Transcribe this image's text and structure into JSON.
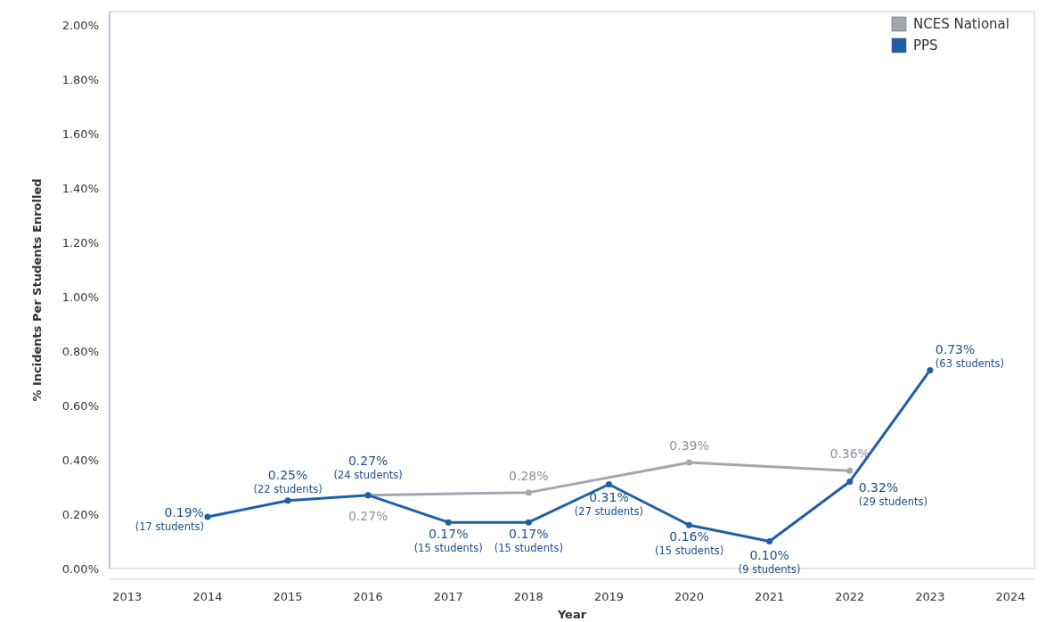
{
  "chart_data": {
    "type": "line",
    "xlabel": "Year",
    "ylabel": "% Incidents Per Students Enrolled",
    "xlim": [
      2012.78,
      2024.3
    ],
    "xticks": [
      2013,
      2014,
      2015,
      2016,
      2017,
      2018,
      2019,
      2020,
      2021,
      2022,
      2023,
      2024
    ],
    "ylim": [
      0,
      2.05
    ],
    "yticks": [
      {
        "value": 0,
        "label": "0.00%"
      },
      {
        "value": 0.2,
        "label": "0.20%"
      },
      {
        "value": 0.4,
        "label": "0.40%"
      },
      {
        "value": 0.6,
        "label": "0.60%"
      },
      {
        "value": 0.8,
        "label": "0.80%"
      },
      {
        "value": 1.0,
        "label": "1.00%"
      },
      {
        "value": 1.2,
        "label": "1.20%"
      },
      {
        "value": 1.4,
        "label": "1.40%"
      },
      {
        "value": 1.6,
        "label": "1.60%"
      },
      {
        "value": 1.8,
        "label": "1.80%"
      },
      {
        "value": 2.0,
        "label": "2.00%"
      }
    ],
    "grid": false,
    "legend": "top right",
    "marker": "circle",
    "line_style": "solid",
    "series": [
      {
        "name": "NCES National",
        "color": "#a2a8ae",
        "x": [
          2016,
          2018,
          2020,
          2022
        ],
        "values": [
          0.27,
          0.28,
          0.39,
          0.36
        ],
        "value_labels": [
          "0.27%",
          "0.28%",
          "0.39%",
          "0.36%"
        ]
      },
      {
        "name": "PPS",
        "color": "#1f5fa8",
        "x": [
          2014,
          2015,
          2016,
          2017,
          2018,
          2019,
          2020,
          2021,
          2022,
          2023
        ],
        "values": [
          0.19,
          0.25,
          0.27,
          0.17,
          0.17,
          0.31,
          0.16,
          0.1,
          0.32,
          0.73
        ],
        "value_labels": [
          "0.19%\n(17 students)",
          "0.25%\n(22 students)",
          "0.27%\n(24 students)",
          "0.17%\n(15 students)",
          "0.17%\n(15 students)",
          "0.31%\n(27 students)",
          "0.16%\n(15 students)",
          "0.10%\n(9 students)",
          "0.32%\n(29 students)",
          "0.73%\n(63 students)"
        ]
      }
    ]
  }
}
